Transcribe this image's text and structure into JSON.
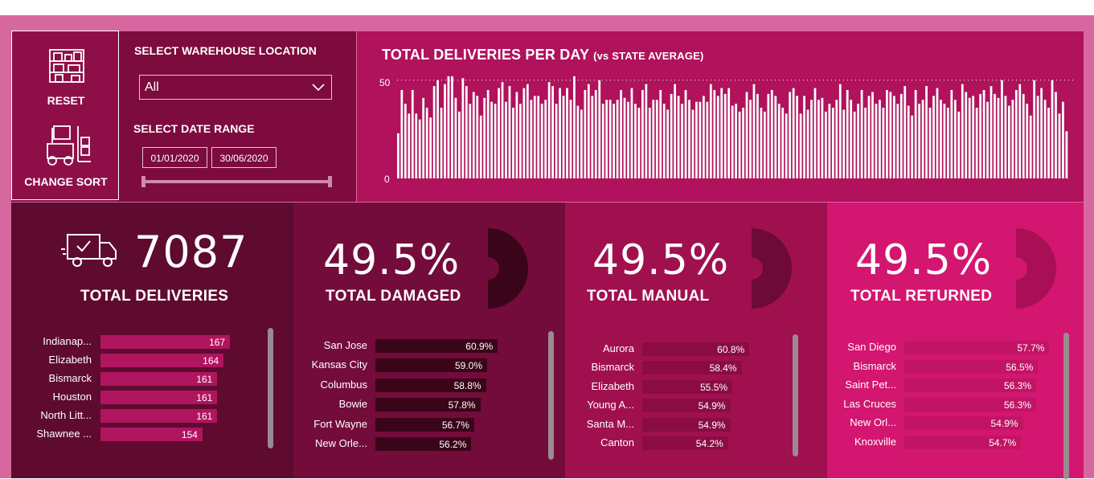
{
  "controls": {
    "reset_label": "RESET",
    "change_sort_label": "CHANGE SORT",
    "warehouse_label": "SELECT WAREHOUSE LOCATION",
    "warehouse_value": "All",
    "date_label": "SELECT DATE RANGE",
    "date_start": "01/01/2020",
    "date_end": "30/06/2020"
  },
  "chart": {
    "title": "TOTAL DELIVERIES PER DAY",
    "subtitle": "(vs STATE AVERAGE)",
    "y_tick_top": "50",
    "y_tick_bottom": "0"
  },
  "chart_data": {
    "type": "bar",
    "title": "TOTAL DELIVERIES PER DAY (vs STATE AVERAGE)",
    "ylim": [
      0,
      50
    ],
    "reference_line": 50,
    "values": [
      23,
      45,
      38,
      33,
      45,
      33,
      30,
      41,
      36,
      31,
      47,
      50,
      36,
      48,
      52,
      52,
      41,
      34,
      51,
      47,
      38,
      44,
      42,
      32,
      41,
      45,
      39,
      38,
      46,
      49,
      39,
      47,
      36,
      44,
      38,
      46,
      48,
      40,
      42,
      42,
      38,
      40,
      49,
      47,
      38,
      46,
      42,
      46,
      40,
      52,
      37,
      35,
      45,
      48,
      42,
      45,
      50,
      38,
      40,
      40,
      38,
      40,
      45,
      41,
      39,
      46,
      38,
      36,
      45,
      48,
      36,
      40,
      40,
      45,
      38,
      35,
      43,
      48,
      42,
      38,
      45,
      40,
      35,
      39,
      39,
      42,
      39,
      48,
      45,
      42,
      46,
      43,
      46,
      37,
      38,
      34,
      36,
      44,
      40,
      48,
      43,
      36,
      34,
      43,
      45,
      42,
      38,
      36,
      33,
      44,
      46,
      42,
      33,
      42,
      35,
      40,
      46,
      40,
      41,
      34,
      38,
      36,
      40,
      48,
      35,
      45,
      40,
      34,
      38,
      45,
      36,
      42,
      44,
      38,
      40,
      36,
      45,
      44,
      42,
      38,
      43,
      47,
      37,
      32,
      45,
      38,
      40,
      47,
      36,
      42,
      46,
      40,
      38,
      36,
      45,
      40,
      34,
      48,
      44,
      41,
      42,
      36,
      43,
      45,
      39,
      47,
      43,
      41,
      50,
      42,
      37,
      40,
      45,
      48,
      43,
      38,
      32,
      50,
      42,
      46,
      40,
      36,
      50,
      44,
      33,
      39,
      24
    ]
  },
  "cards": [
    {
      "value": "7087",
      "title": "TOTAL DELIVERIES",
      "rows": [
        {
          "label": "Indianap...",
          "value": "167",
          "num": 167
        },
        {
          "label": "Elizabeth",
          "value": "164",
          "num": 164
        },
        {
          "label": "Bismarck",
          "value": "161",
          "num": 161
        },
        {
          "label": "Houston",
          "value": "161",
          "num": 161
        },
        {
          "label": "North Litt...",
          "value": "161",
          "num": 161
        },
        {
          "label": "Shawnee ...",
          "value": "154",
          "num": 154
        }
      ]
    },
    {
      "value": "49.5%",
      "title": "TOTAL DAMAGED",
      "rows": [
        {
          "label": "San Jose",
          "value": "60.9%",
          "num": 60.9
        },
        {
          "label": "Kansas City",
          "value": "59.0%",
          "num": 59.0
        },
        {
          "label": "Columbus",
          "value": "58.8%",
          "num": 58.8
        },
        {
          "label": "Bowie",
          "value": "57.8%",
          "num": 57.8
        },
        {
          "label": "Fort Wayne",
          "value": "56.7%",
          "num": 56.7
        },
        {
          "label": "New Orle...",
          "value": "56.2%",
          "num": 56.2
        }
      ]
    },
    {
      "value": "49.5%",
      "title": "TOTAL MANUAL",
      "rows": [
        {
          "label": "Aurora",
          "value": "60.8%",
          "num": 60.8
        },
        {
          "label": "Bismarck",
          "value": "58.4%",
          "num": 58.4
        },
        {
          "label": "Elizabeth",
          "value": "55.5%",
          "num": 55.5
        },
        {
          "label": "Young A...",
          "value": "54.9%",
          "num": 54.9
        },
        {
          "label": "Santa M...",
          "value": "54.9%",
          "num": 54.9
        },
        {
          "label": "Canton",
          "value": "54.2%",
          "num": 54.2
        }
      ]
    },
    {
      "value": "49.5%",
      "title": "TOTAL RETURNED",
      "rows": [
        {
          "label": "San Diego",
          "value": "57.7%",
          "num": 57.7
        },
        {
          "label": "Bismarck",
          "value": "56.5%",
          "num": 56.5
        },
        {
          "label": "Saint Pet...",
          "value": "56.3%",
          "num": 56.3
        },
        {
          "label": "Las Cruces",
          "value": "56.3%",
          "num": 56.3
        },
        {
          "label": "New Orl...",
          "value": "54.9%",
          "num": 54.9
        },
        {
          "label": "Knoxville",
          "value": "54.7%",
          "num": 54.7
        }
      ]
    }
  ],
  "colors": {
    "frame": "#d7689f",
    "card1": "#5f0a2f",
    "card2": "#730c3b",
    "card3": "#a0104f",
    "card4": "#d3166f",
    "chart_bg": "#b0125c",
    "bar1": "#b0155f",
    "bar2": "#3a0419",
    "bar3": "#8a0c43",
    "bar4": "#c21465"
  },
  "icons": [
    "warehouse-shelf-icon",
    "forklift-icon",
    "chevron-down-icon",
    "delivery-truck-icon",
    "donut-gauge-icon"
  ]
}
